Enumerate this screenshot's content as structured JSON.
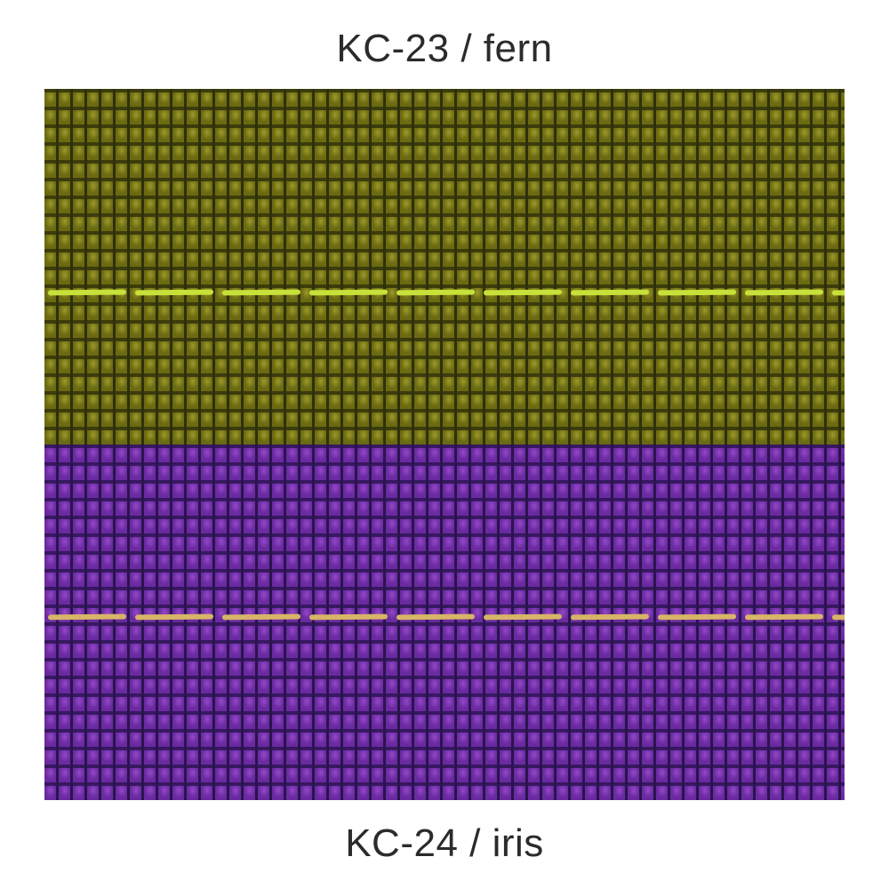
{
  "swatches": [
    {
      "label": "KC-23 / fern",
      "base_color": "#6b6a12",
      "highlight_color": "#9c9a2a",
      "shadow_color": "#2f300a",
      "stitch_color": "#c8e03a"
    },
    {
      "label": "KC-24 / iris",
      "base_color": "#6a2aa0",
      "highlight_color": "#9448c8",
      "shadow_color": "#2a1450",
      "stitch_color": "#d8b468"
    }
  ]
}
